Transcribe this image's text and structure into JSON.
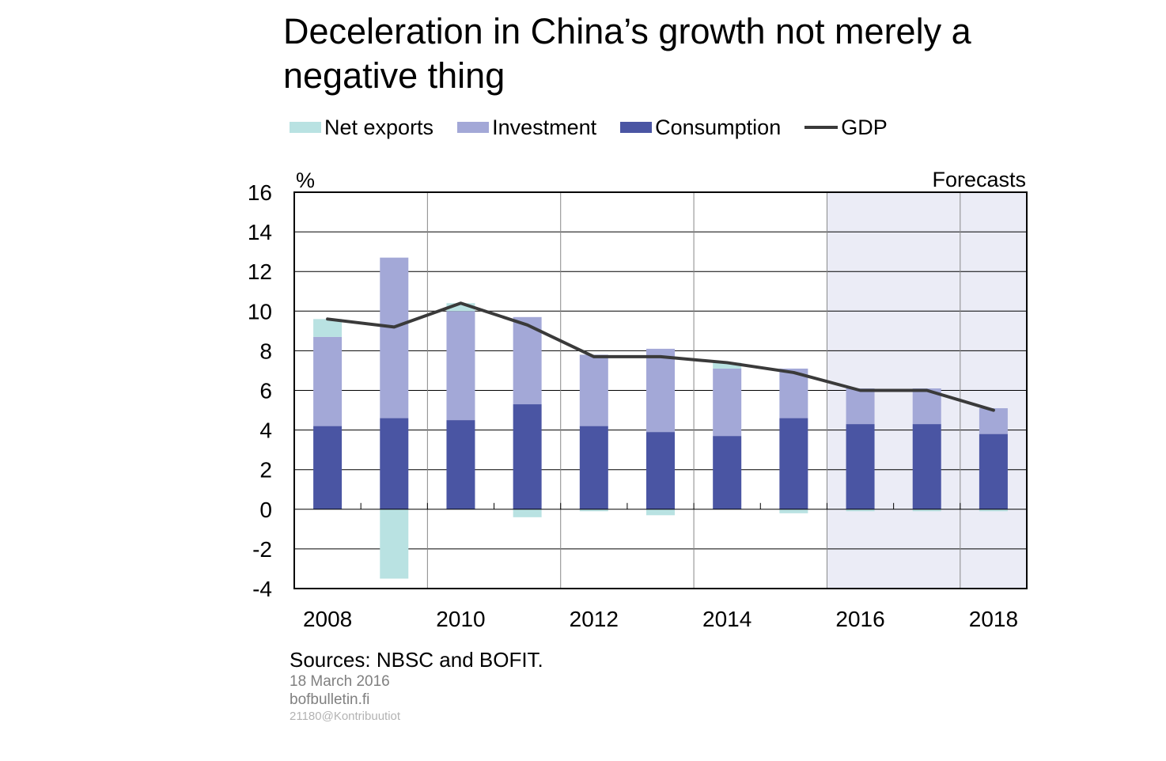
{
  "title": "Deceleration in China’s growth not merely a negative thing",
  "legend": [
    {
      "label": "Net exports",
      "color": "#b9e2e2",
      "kind": "bar"
    },
    {
      "label": "Investment",
      "color": "#a3a8d7",
      "kind": "bar"
    },
    {
      "label": "Consumption",
      "color": "#4a55a3",
      "kind": "bar"
    },
    {
      "label": "GDP",
      "color": "#3a3a3a",
      "kind": "line"
    }
  ],
  "chart_data": {
    "type": "bar",
    "stacked": true,
    "unit_label": "%",
    "forecast_label": "Forecasts",
    "forecast_from": "2016",
    "ylim": [
      -4,
      16
    ],
    "yticks": [
      -4,
      -2,
      0,
      2,
      4,
      6,
      8,
      10,
      12,
      14,
      16
    ],
    "categories": [
      "2008",
      "2009",
      "2010",
      "2011",
      "2012",
      "2013",
      "2014",
      "2015",
      "2016",
      "2017",
      "2018"
    ],
    "xtick_labels": [
      "2008",
      "2010",
      "2012",
      "2014",
      "2016",
      "2018"
    ],
    "series": [
      {
        "name": "Consumption",
        "color": "#4a55a3",
        "values": [
          4.2,
          4.6,
          4.5,
          5.3,
          4.2,
          3.9,
          3.7,
          4.6,
          4.3,
          4.3,
          3.8
        ]
      },
      {
        "name": "Investment",
        "color": "#a3a8d7",
        "values": [
          4.5,
          8.1,
          5.5,
          4.4,
          3.6,
          4.2,
          3.4,
          2.5,
          1.8,
          1.8,
          1.3
        ]
      },
      {
        "name": "Net exports",
        "color": "#b9e2e2",
        "values": [
          0.9,
          -3.5,
          0.4,
          -0.4,
          -0.1,
          -0.3,
          0.3,
          -0.2,
          -0.1,
          -0.1,
          -0.1
        ]
      }
    ],
    "line": {
      "name": "GDP",
      "color": "#3a3a3a",
      "values": [
        9.6,
        9.2,
        10.4,
        9.3,
        7.7,
        7.7,
        7.4,
        6.9,
        6.0,
        6.0,
        5.0
      ]
    },
    "grid": true
  },
  "notes": {
    "sources": "Sources: NBSC and BOFIT.",
    "date": "18 March 2016",
    "site": "bofbulletin.fi",
    "code": "21180@Kontribuutiot"
  }
}
